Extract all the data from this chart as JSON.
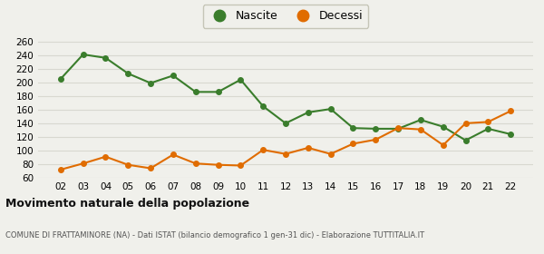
{
  "years": [
    "02",
    "03",
    "04",
    "05",
    "06",
    "07",
    "08",
    "09",
    "10",
    "11",
    "12",
    "13",
    "14",
    "15",
    "16",
    "17",
    "18",
    "19",
    "20",
    "21",
    "22"
  ],
  "nascite": [
    205,
    241,
    236,
    213,
    199,
    210,
    186,
    186,
    204,
    165,
    140,
    156,
    161,
    133,
    132,
    132,
    145,
    135,
    115,
    132,
    124
  ],
  "decessi": [
    72,
    81,
    91,
    79,
    74,
    94,
    81,
    79,
    78,
    101,
    95,
    104,
    95,
    110,
    116,
    133,
    131,
    108,
    140,
    142,
    158
  ],
  "nascite_color": "#3a7d2c",
  "decessi_color": "#e06c00",
  "bg_color": "#f0f0eb",
  "grid_color": "#d8d8d0",
  "ylim": [
    60,
    265
  ],
  "yticks": [
    60,
    80,
    100,
    120,
    140,
    160,
    180,
    200,
    220,
    240,
    260
  ],
  "title": "Movimento naturale della popolazione",
  "subtitle": "COMUNE DI FRATTAMINORE (NA) - Dati ISTAT (bilancio demografico 1 gen-31 dic) - Elaborazione TUTTITALIA.IT",
  "legend_nascite": "Nascite",
  "legend_decessi": "Decessi",
  "marker_size": 4,
  "line_width": 1.5
}
